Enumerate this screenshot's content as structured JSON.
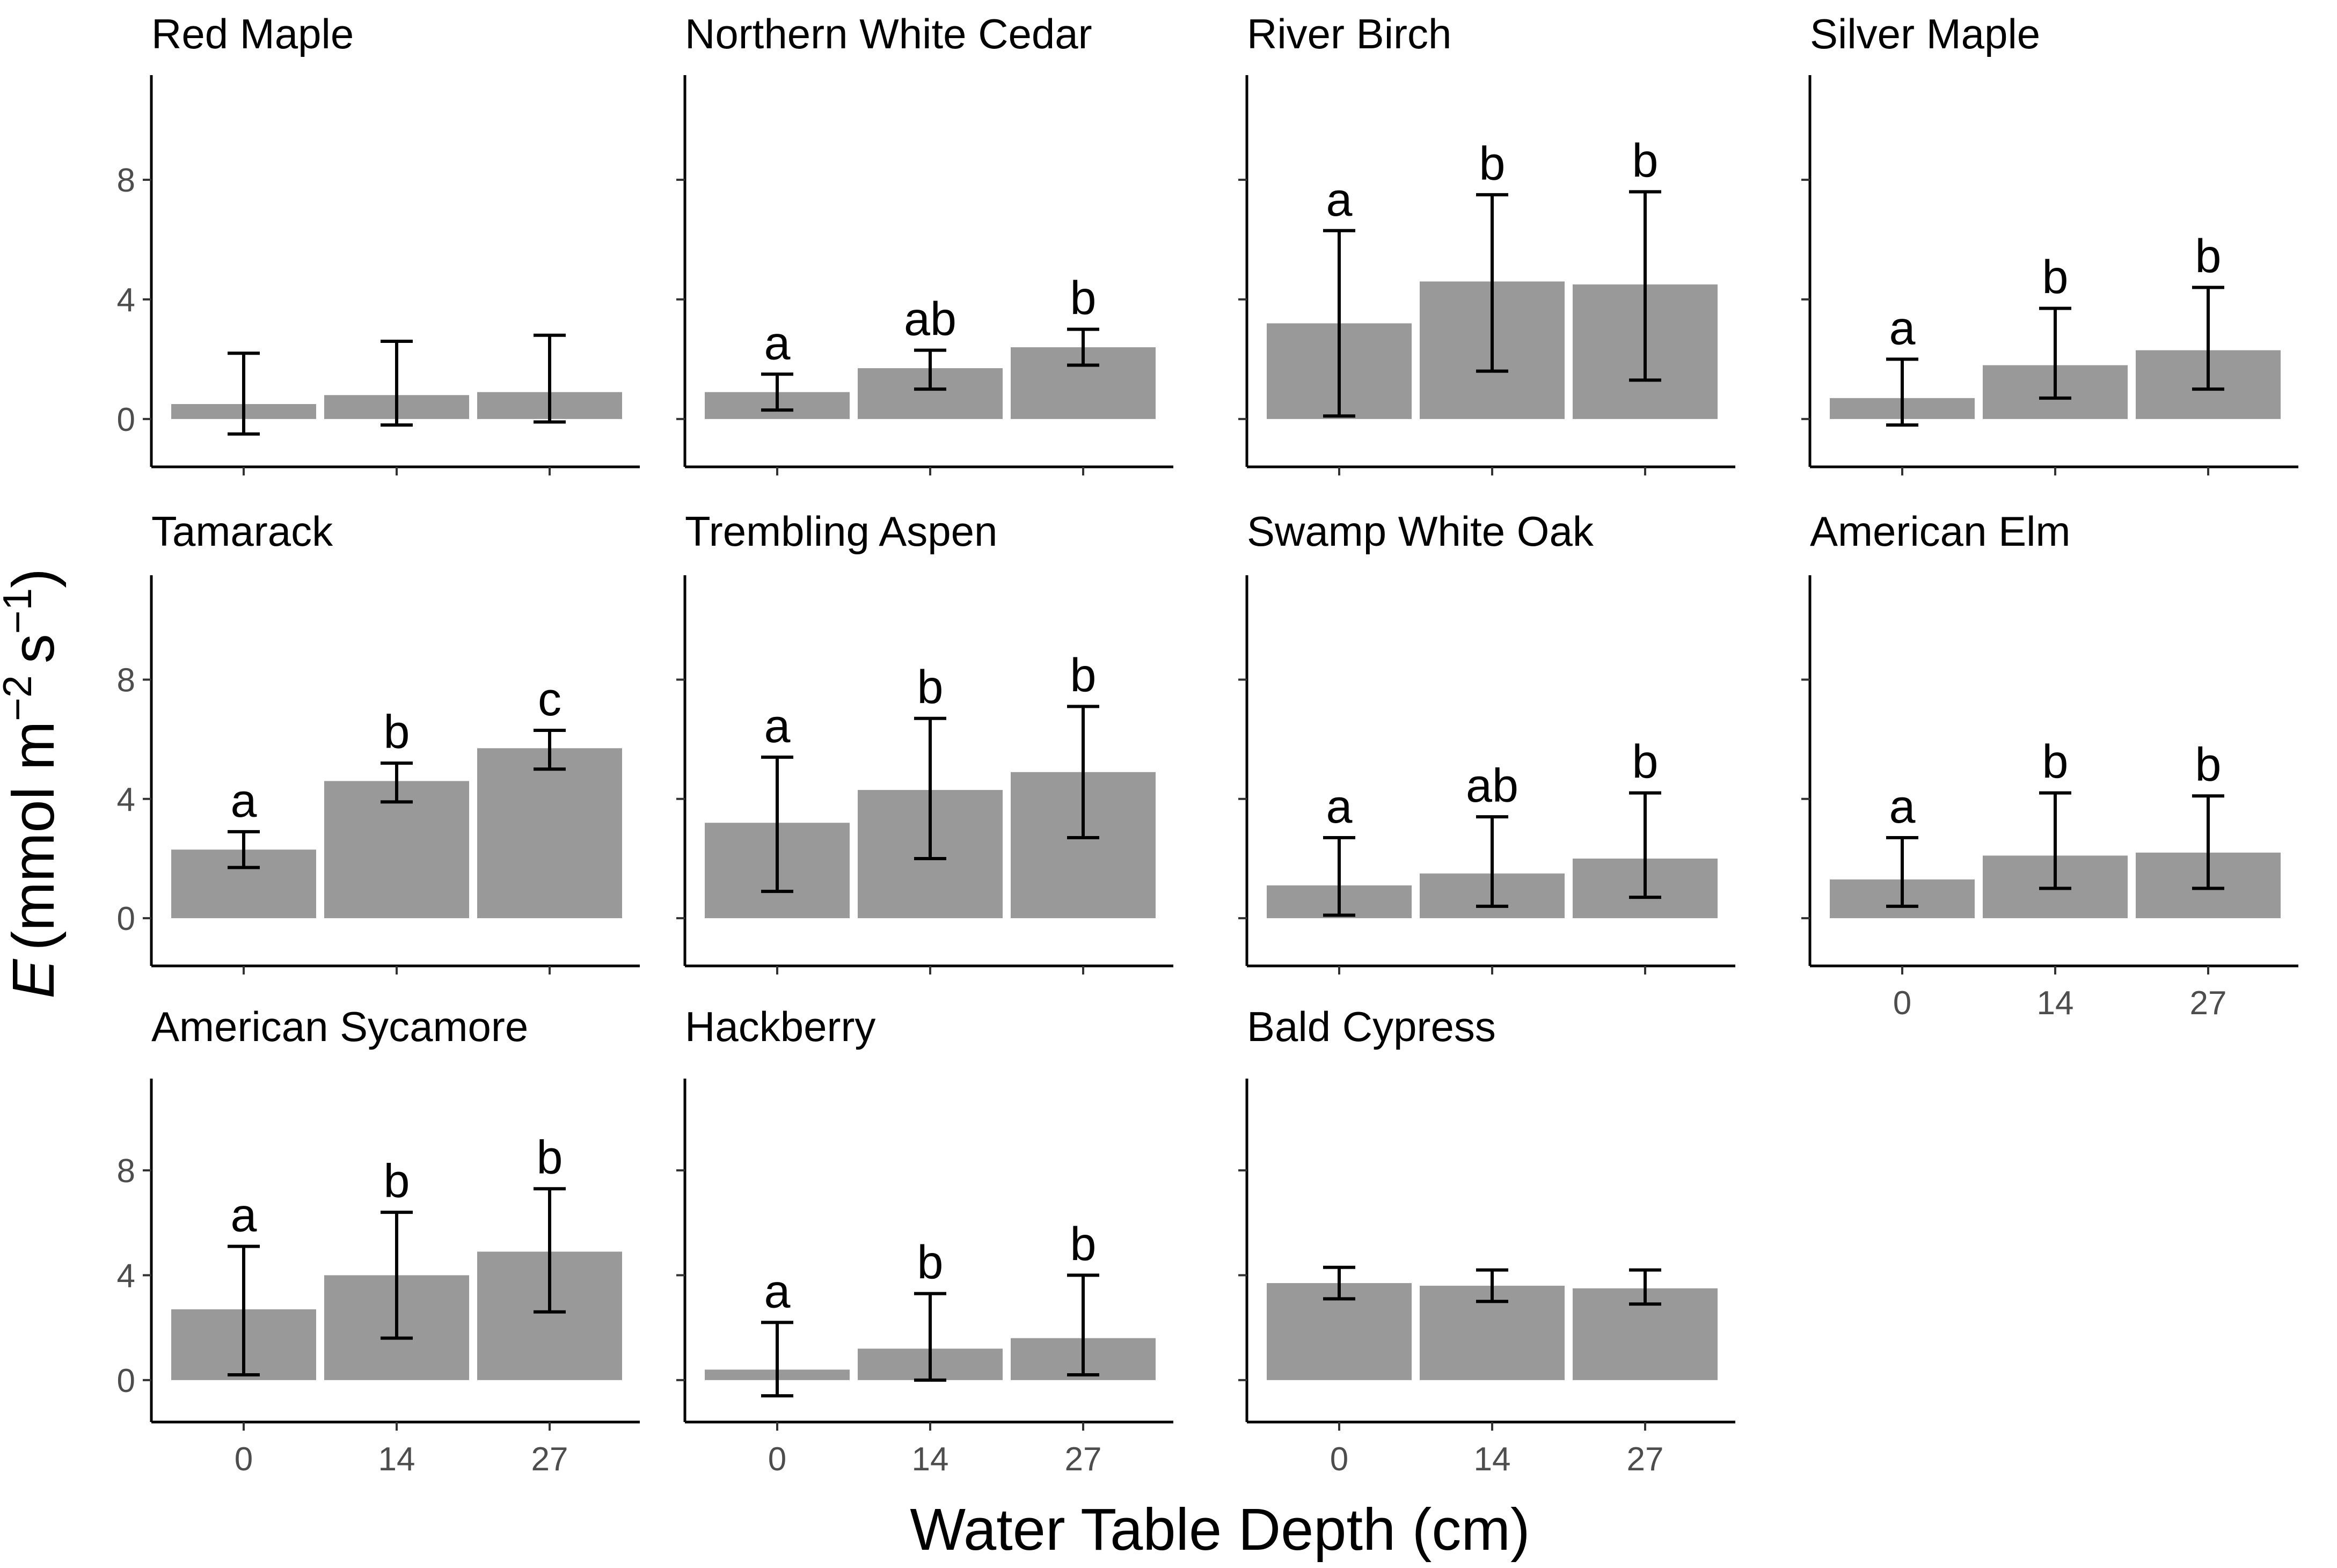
{
  "chart_data": {
    "type": "bar",
    "xlabel": "Water Table Depth (cm)",
    "ylabel": {
      "symbol": "E",
      "paren_open": "(",
      "unit_mmol": "mmol m",
      "exp_m": "−2",
      "unit_s": "s",
      "exp_s": "−1",
      "paren_close": ")"
    },
    "categories": [
      "0",
      "14",
      "27"
    ],
    "yticks": [
      "0",
      "4",
      "8"
    ],
    "ylim": [
      -1.6,
      11.5
    ],
    "grid": false,
    "legend": "none",
    "bar_color": "#999999",
    "error_color": "#000000",
    "panels": [
      {
        "title": "Red Maple",
        "values": [
          0.5,
          0.8,
          0.9
        ],
        "err_low": [
          -0.5,
          -0.2,
          -0.1
        ],
        "err_high": [
          2.2,
          2.6,
          2.8
        ],
        "letters": [
          "",
          "",
          ""
        ]
      },
      {
        "title": "Northern White Cedar",
        "values": [
          0.9,
          1.7,
          2.4
        ],
        "err_low": [
          0.3,
          1.0,
          1.8
        ],
        "err_high": [
          1.5,
          2.3,
          3.0
        ],
        "letters": [
          "a",
          "ab",
          "b"
        ]
      },
      {
        "title": "River Birch",
        "values": [
          3.2,
          4.6,
          4.5
        ],
        "err_low": [
          0.1,
          1.6,
          1.3
        ],
        "err_high": [
          6.3,
          7.5,
          7.6
        ],
        "letters": [
          "a",
          "b",
          "b"
        ]
      },
      {
        "title": "Silver Maple",
        "values": [
          0.7,
          1.8,
          2.3
        ],
        "err_low": [
          -0.2,
          0.7,
          1.0
        ],
        "err_high": [
          2.0,
          3.7,
          4.4
        ],
        "letters": [
          "a",
          "b",
          "b"
        ]
      },
      {
        "title": "Tamarack",
        "values": [
          2.3,
          4.6,
          5.7
        ],
        "err_low": [
          1.7,
          3.9,
          5.0
        ],
        "err_high": [
          2.9,
          5.2,
          6.3
        ],
        "letters": [
          "a",
          "b",
          "c"
        ]
      },
      {
        "title": "Trembling Aspen",
        "values": [
          3.2,
          4.3,
          4.9
        ],
        "err_low": [
          0.9,
          2.0,
          2.7
        ],
        "err_high": [
          5.4,
          6.7,
          7.1
        ],
        "letters": [
          "a",
          "b",
          "b"
        ]
      },
      {
        "title": "Swamp White Oak",
        "values": [
          1.1,
          1.5,
          2.0
        ],
        "err_low": [
          0.1,
          0.4,
          0.7
        ],
        "err_high": [
          2.7,
          3.4,
          4.2
        ],
        "letters": [
          "a",
          "ab",
          "b"
        ]
      },
      {
        "title": "American Elm",
        "values": [
          1.3,
          2.1,
          2.2
        ],
        "err_low": [
          0.4,
          1.0,
          1.0
        ],
        "err_high": [
          2.7,
          4.2,
          4.1
        ],
        "letters": [
          "a",
          "b",
          "b"
        ]
      },
      {
        "title": "American Sycamore",
        "values": [
          2.7,
          4.0,
          4.9
        ],
        "err_low": [
          0.2,
          1.6,
          2.6
        ],
        "err_high": [
          5.1,
          6.4,
          7.3
        ],
        "letters": [
          "a",
          "b",
          "b"
        ]
      },
      {
        "title": "Hackberry",
        "values": [
          0.4,
          1.2,
          1.6
        ],
        "err_low": [
          -0.6,
          0.0,
          0.2
        ],
        "err_high": [
          2.2,
          3.3,
          4.0
        ],
        "letters": [
          "a",
          "b",
          "b"
        ]
      },
      {
        "title": "Bald Cypress",
        "values": [
          3.7,
          3.6,
          3.5
        ],
        "err_low": [
          3.1,
          3.0,
          2.9
        ],
        "err_high": [
          4.3,
          4.2,
          4.2
        ],
        "letters": [
          "",
          "",
          ""
        ]
      }
    ]
  }
}
